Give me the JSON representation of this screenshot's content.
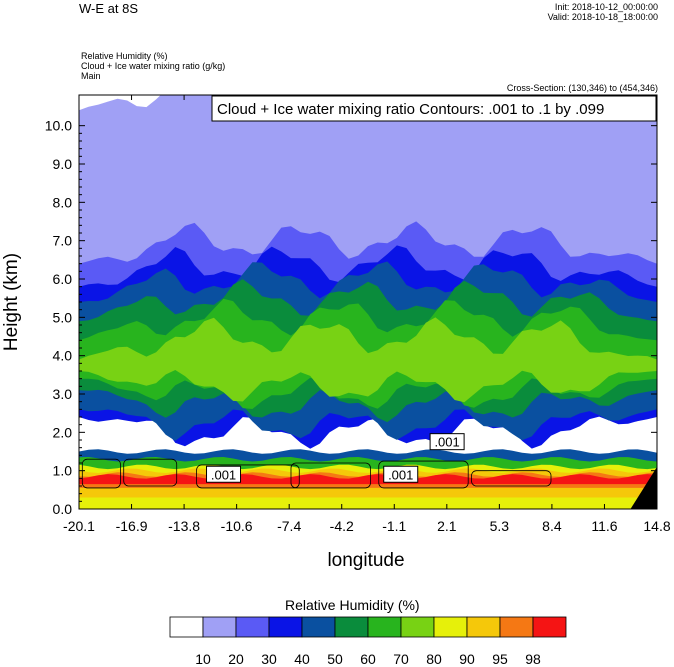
{
  "header": {
    "title": "W-E at 8S",
    "init": "Init: 2018-10-12_00:00:00",
    "valid": "Valid: 2018-10-18_18:00:00",
    "fields": [
      "Relative Humidity   (%)",
      "Cloud + Ice water mixing ratio   (g/kg)",
      "Main"
    ],
    "cross_section": "Cross-Section: (130,346) to (454,346)"
  },
  "colors": {
    "rh": [
      "#ffffff",
      "#a0a0f5",
      "#5a5af5",
      "#0a14e6",
      "#0a50a0",
      "#0a8c3c",
      "#28b41e",
      "#78d214",
      "#e6f00a",
      "#f5c80a",
      "#f57814",
      "#f51414"
    ]
  },
  "chart_data": {
    "type": "heatmap",
    "title": "",
    "contour_label": "Cloud + Ice water mixing ratio Contours: .001 to .1 by .099",
    "contour_levels": [
      0.001,
      0.1
    ],
    "contour_value_labels": [
      ".001",
      ".001",
      ".001"
    ],
    "xlabel": "longitude",
    "ylabel": "Height (km)",
    "xlim": [
      -20.1,
      14.8
    ],
    "ylim": [
      0.0,
      10.8
    ],
    "x_ticks": [
      "-20.1",
      "-16.9",
      "-13.8",
      "-10.6",
      "-7.4",
      "-4.2",
      "-1.1",
      "2.1",
      "5.3",
      "8.4",
      "11.6",
      "14.8"
    ],
    "y_ticks": [
      "0.0",
      "1.0",
      "2.0",
      "3.0",
      "4.0",
      "5.0",
      "6.0",
      "7.0",
      "8.0",
      "9.0",
      "10.0"
    ],
    "y_tick_values": [
      0,
      1,
      2,
      3,
      4,
      5,
      6,
      7,
      8,
      9,
      10
    ],
    "colorbar": {
      "title": "Relative Humidity   (%)",
      "labels": [
        "10",
        "20",
        "30",
        "40",
        "50",
        "60",
        "70",
        "80",
        "90",
        "95",
        "98"
      ]
    },
    "rh_layers_km": [
      {
        "level": 1,
        "bottom": 3.2,
        "top": 11.0
      },
      {
        "level": 2,
        "bottom": 2.4,
        "top": 7.0
      },
      {
        "level": 3,
        "bottom": 2.0,
        "top": 6.4
      },
      {
        "level": 4,
        "bottom": 2.2,
        "top": 6.0
      },
      {
        "level": 5,
        "bottom": 2.7,
        "top": 5.5
      },
      {
        "level": 6,
        "bottom": 3.0,
        "top": 5.0
      },
      {
        "level": 7,
        "bottom": 3.2,
        "top": 4.5
      }
    ],
    "boundary_layer_km": [
      {
        "level": 4,
        "bottom": 0.0,
        "top": 1.5
      },
      {
        "level": 6,
        "bottom": 0.0,
        "top": 1.3
      },
      {
        "level": 8,
        "bottom": 0.0,
        "top": 1.1
      },
      {
        "level": 9,
        "bottom": 0.3,
        "top": 1.0
      },
      {
        "level": 10,
        "bottom": 0.55,
        "top": 0.9
      },
      {
        "level": 11,
        "bottom": 0.65,
        "top": 0.85
      }
    ]
  }
}
